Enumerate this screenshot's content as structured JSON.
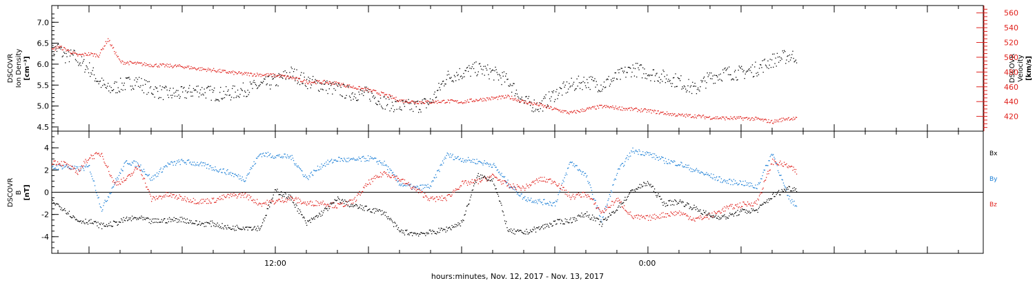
{
  "colors": {
    "axis": "#000000",
    "density": "#000000",
    "velocity": "#e0201b",
    "bx": "#000000",
    "by": "#1c7fd6",
    "bz": "#e0201b"
  },
  "x_axis": {
    "label": "hours:minutes, Nov. 12, 2017 - Nov. 13, 2017",
    "tick_labels": [
      "12:00",
      "0:00"
    ]
  },
  "chart_data": [
    {
      "type": "scatter",
      "panel": "top",
      "y_label_left": [
        "DSCOVR",
        "Ion Density",
        "[cm⁻³]"
      ],
      "y_label_right": [
        "DSCOVR",
        "Velocity",
        "[km/s]"
      ],
      "ylim_left": [
        4.4,
        7.4
      ],
      "ylim_right": [
        400,
        570
      ],
      "yticks_left": [
        "4.5",
        "5.0",
        "5.5",
        "6.0",
        "6.5",
        "7.0"
      ],
      "yticks_right": [
        "420",
        "440",
        "460",
        "480",
        "500",
        "520",
        "540",
        "560"
      ],
      "xlim_hours": [
        4.8,
        34.8
      ],
      "series": [
        {
          "name": "Ion Density",
          "axis": "left",
          "x_hours": [
            4.8,
            5.0,
            5.2,
            5.5,
            5.8,
            6.0,
            6.3,
            6.6,
            7.0,
            7.5,
            8.0,
            8.5,
            9.0,
            9.5,
            10.0,
            10.5,
            11.0,
            11.5,
            12.0,
            12.5,
            13.0,
            13.5,
            14.0,
            14.5,
            15.0,
            15.5,
            16.0,
            16.5,
            17.0,
            17.5,
            18.0,
            18.5,
            19.0,
            19.5,
            20.0,
            20.5,
            21.0,
            21.5,
            22.0,
            22.5,
            23.0,
            23.5,
            24.0,
            24.5,
            25.0,
            25.5,
            26.0,
            26.5,
            27.0,
            27.5,
            28.0,
            28.5,
            28.8
          ],
          "y": [
            6.3,
            6.4,
            6.2,
            6.2,
            6.0,
            5.9,
            5.6,
            5.4,
            5.5,
            5.6,
            5.4,
            5.3,
            5.3,
            5.4,
            5.3,
            5.3,
            5.4,
            5.5,
            5.6,
            5.8,
            5.6,
            5.5,
            5.4,
            5.3,
            5.3,
            5.1,
            5.0,
            5.0,
            5.1,
            5.7,
            5.8,
            5.9,
            5.8,
            5.6,
            5.1,
            5.0,
            5.3,
            5.5,
            5.6,
            5.5,
            5.7,
            5.9,
            5.8,
            5.7,
            5.6,
            5.4,
            5.7,
            5.8,
            5.8,
            5.9,
            6.1,
            6.2,
            6.2
          ]
        },
        {
          "name": "Velocity",
          "axis": "right",
          "x_hours": [
            4.8,
            5.0,
            5.3,
            5.6,
            6.0,
            6.3,
            6.6,
            7.0,
            7.5,
            8.0,
            8.5,
            9.0,
            9.5,
            10.0,
            10.5,
            11.0,
            11.5,
            12.0,
            12.5,
            13.0,
            13.5,
            14.0,
            14.5,
            15.0,
            15.5,
            16.0,
            16.5,
            17.0,
            17.5,
            18.0,
            18.5,
            19.0,
            19.5,
            20.0,
            20.5,
            21.0,
            21.5,
            22.0,
            22.5,
            23.0,
            23.5,
            24.0,
            24.5,
            25.0,
            25.5,
            26.0,
            26.5,
            27.0,
            27.5,
            28.0,
            28.5,
            28.8
          ],
          "y": [
            510,
            515,
            510,
            503,
            505,
            503,
            525,
            494,
            492,
            490,
            489,
            488,
            485,
            483,
            480,
            478,
            477,
            476,
            473,
            467,
            467,
            465,
            460,
            456,
            450,
            442,
            440,
            440,
            441,
            440,
            443,
            445,
            447,
            440,
            436,
            430,
            425,
            430,
            434,
            432,
            430,
            428,
            425,
            422,
            421,
            419,
            418,
            418,
            417,
            413,
            418,
            417
          ]
        }
      ]
    },
    {
      "type": "scatter",
      "panel": "bottom",
      "y_label_left": [
        "DSCOVR",
        "B",
        "[nT]"
      ],
      "ylim": [
        -5.5,
        5.5
      ],
      "yticks": [
        "-4",
        "-2",
        "0",
        "2",
        "4"
      ],
      "xlim_hours": [
        4.8,
        34.8
      ],
      "legend_position": "right",
      "series": [
        {
          "name": "Bx",
          "x_hours": [
            4.8,
            5.2,
            5.6,
            6.0,
            6.4,
            6.8,
            7.2,
            7.6,
            8.0,
            8.5,
            9.0,
            9.5,
            10.0,
            10.5,
            11.0,
            11.5,
            12.0,
            12.5,
            13.0,
            13.5,
            14.0,
            14.5,
            15.0,
            15.5,
            16.0,
            16.5,
            17.0,
            17.5,
            18.0,
            18.5,
            19.0,
            19.5,
            20.0,
            20.5,
            21.0,
            21.5,
            22.0,
            22.5,
            23.0,
            23.5,
            24.0,
            24.5,
            25.0,
            25.5,
            26.0,
            26.5,
            27.0,
            27.5,
            28.0,
            28.5,
            28.8
          ],
          "y": [
            -0.8,
            -1.5,
            -2.5,
            -2.6,
            -3.0,
            -2.8,
            -2.4,
            -2.3,
            -2.6,
            -2.5,
            -2.4,
            -2.8,
            -2.8,
            -3.2,
            -3.1,
            -3.2,
            0.2,
            -0.5,
            -2.8,
            -1.8,
            -0.6,
            -1.2,
            -1.5,
            -1.8,
            -3.5,
            -3.7,
            -3.6,
            -3.3,
            -2.7,
            1.5,
            1.2,
            -3.5,
            -3.6,
            -3.2,
            -2.7,
            -2.5,
            -1.9,
            -2.8,
            -1.4,
            0.2,
            0.9,
            -1.0,
            -0.8,
            -1.4,
            -2.1,
            -2.2,
            -1.7,
            -1.6,
            -0.3,
            0.4,
            0.3
          ]
        },
        {
          "name": "By",
          "x_hours": [
            4.8,
            5.2,
            5.6,
            6.0,
            6.4,
            6.8,
            7.2,
            7.6,
            8.0,
            8.5,
            9.0,
            9.5,
            10.0,
            10.5,
            11.0,
            11.5,
            12.0,
            12.5,
            13.0,
            13.5,
            14.0,
            14.5,
            15.0,
            15.5,
            16.0,
            16.5,
            17.0,
            17.5,
            18.0,
            18.5,
            19.0,
            19.5,
            20.0,
            20.5,
            21.0,
            21.5,
            22.0,
            22.5,
            23.0,
            23.5,
            24.0,
            24.5,
            25.0,
            25.5,
            26.0,
            26.5,
            27.0,
            27.5,
            28.0,
            28.5,
            28.8
          ],
          "y": [
            2.2,
            2.4,
            2.1,
            2.3,
            -1.5,
            0.8,
            2.8,
            2.5,
            1.2,
            2.5,
            2.8,
            2.6,
            2.2,
            1.8,
            1.2,
            3.5,
            3.3,
            3.2,
            1.3,
            2.5,
            3.0,
            2.9,
            3.1,
            2.6,
            0.8,
            0.4,
            0.6,
            3.4,
            3.0,
            2.8,
            2.5,
            0.8,
            -0.5,
            -0.8,
            -1.0,
            2.8,
            1.5,
            -2.5,
            1.8,
            3.8,
            3.5,
            2.9,
            2.6,
            2.0,
            1.5,
            1.0,
            0.9,
            0.5,
            3.6,
            -0.4,
            -1.3
          ]
        },
        {
          "name": "Bz",
          "x_hours": [
            4.8,
            5.2,
            5.6,
            6.0,
            6.4,
            6.8,
            7.2,
            7.6,
            8.0,
            8.5,
            9.0,
            9.5,
            10.0,
            10.5,
            11.0,
            11.5,
            12.0,
            12.5,
            13.0,
            13.5,
            14.0,
            14.5,
            15.0,
            15.5,
            16.0,
            16.5,
            17.0,
            17.5,
            18.0,
            18.5,
            19.0,
            19.5,
            20.0,
            20.5,
            21.0,
            21.5,
            22.0,
            22.5,
            23.0,
            23.5,
            24.0,
            24.5,
            25.0,
            25.5,
            26.0,
            26.5,
            27.0,
            27.5,
            28.0,
            28.5,
            28.8
          ],
          "y": [
            2.8,
            2.6,
            1.8,
            3.2,
            3.5,
            0.8,
            1.2,
            2.4,
            -0.6,
            -0.2,
            -0.5,
            -0.8,
            -0.7,
            -0.3,
            -0.2,
            -1.0,
            -0.8,
            -0.5,
            -1.0,
            -0.9,
            -1.2,
            -0.8,
            0.9,
            1.8,
            1.2,
            0.3,
            -0.6,
            -0.5,
            0.8,
            1.0,
            1.5,
            0.6,
            0.4,
            1.2,
            1.0,
            -0.4,
            -0.1,
            -1.8,
            -0.6,
            -2.2,
            -2.3,
            -2.0,
            -1.8,
            -2.4,
            -2.1,
            -1.4,
            -1.1,
            -0.9,
            2.8,
            2.4,
            1.8
          ]
        }
      ]
    }
  ]
}
